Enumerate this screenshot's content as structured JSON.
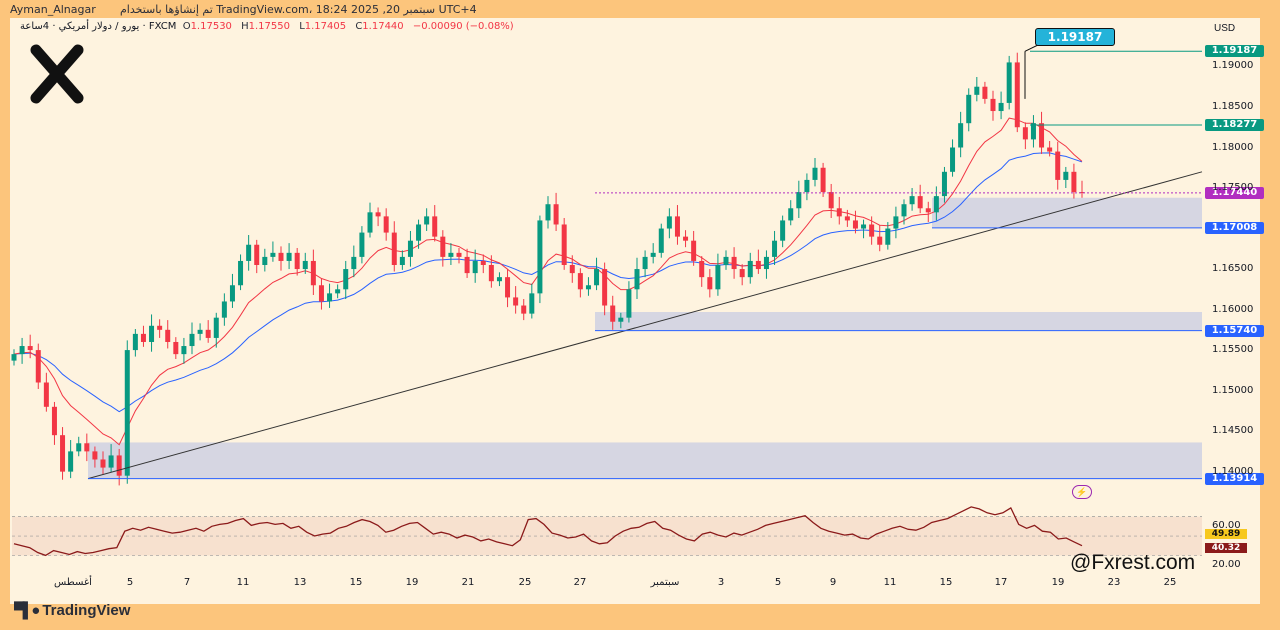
{
  "header": {
    "author": "Ayman_Alnagar",
    "published": "تم إنشاؤها باستخدام TradingView.com، 18:24 2025 ,20 سبتمبر UTC+4"
  },
  "legend": {
    "symbol": "يورو / دولار أمريكي · 4ساعة · FXCM",
    "open_label": "O",
    "open": "1.17530",
    "high_label": "H",
    "high": "1.17550",
    "low_label": "L",
    "low": "1.17405",
    "close_label": "C",
    "close": "1.17440",
    "change": "−0.00090 (−0.08%)"
  },
  "currency": "USD",
  "callout_price": "1.19187",
  "watermark": "@Fxrest.com",
  "brand": "TradingView",
  "chart_data": {
    "type": "candlestick",
    "symbol": "EURUSD",
    "timeframe": "4H",
    "ylim": [
      1.1365,
      1.1945
    ],
    "y_ticks": [
      "1.19000",
      "1.18500",
      "1.18000",
      "1.17500",
      "1.16500",
      "1.16000",
      "1.15500",
      "1.15000",
      "1.14500",
      "1.14000"
    ],
    "y_tick_values": [
      1.19,
      1.185,
      1.18,
      1.175,
      1.165,
      1.16,
      1.155,
      1.15,
      1.145,
      1.14
    ],
    "x_labels": [
      "أغسطس",
      "5",
      "7",
      "11",
      "13",
      "15",
      "19",
      "21",
      "25",
      "27",
      "سبتمبر",
      "3",
      "5",
      "9",
      "11",
      "15",
      "17",
      "19",
      "23",
      "25"
    ],
    "price_levels": [
      {
        "label": "1.19187",
        "value": 1.19187,
        "color": "#089981"
      },
      {
        "label": "1.18277",
        "value": 1.18277,
        "color": "#089981"
      },
      {
        "label": "1.17440",
        "value": 1.1744,
        "color": "#b12ec0"
      },
      {
        "label": "1.17008",
        "value": 1.17008,
        "color": "#2962ff"
      },
      {
        "label": "1.15740",
        "value": 1.1574,
        "color": "#2962ff"
      },
      {
        "label": "1.13914",
        "value": 1.13914,
        "color": "#2962ff"
      }
    ],
    "zones": [
      {
        "from": 1.17008,
        "to": 1.1738
      },
      {
        "from": 1.1574,
        "to": 1.1597
      },
      {
        "from": 1.13914,
        "to": 1.1436
      }
    ],
    "trendline": {
      "start": 1.13914,
      "end_at_chart_edge": 1.177
    },
    "price_path": [
      1.1545,
      1.1555,
      1.155,
      1.151,
      1.148,
      1.1445,
      1.14,
      1.1425,
      1.1435,
      1.1425,
      1.1415,
      1.1405,
      1.142,
      1.1395,
      1.155,
      1.157,
      1.156,
      1.158,
      1.1575,
      1.156,
      1.1545,
      1.1555,
      1.157,
      1.1575,
      1.1565,
      1.159,
      1.161,
      1.163,
      1.166,
      1.168,
      1.1655,
      1.1665,
      1.167,
      1.166,
      1.167,
      1.165,
      1.166,
      1.163,
      1.161,
      1.162,
      1.1625,
      1.165,
      1.1665,
      1.1695,
      1.172,
      1.1715,
      1.1695,
      1.1655,
      1.1665,
      1.1685,
      1.1705,
      1.1715,
      1.169,
      1.1665,
      1.167,
      1.1665,
      1.1645,
      1.166,
      1.1655,
      1.1635,
      1.164,
      1.1615,
      1.1605,
      1.1595,
      1.162,
      1.171,
      1.173,
      1.1705,
      1.1655,
      1.1645,
      1.1625,
      1.163,
      1.165,
      1.1605,
      1.1585,
      1.159,
      1.1625,
      1.165,
      1.1665,
      1.167,
      1.17,
      1.1715,
      1.169,
      1.1685,
      1.166,
      1.164,
      1.1625,
      1.1655,
      1.1665,
      1.165,
      1.164,
      1.166,
      1.165,
      1.1665,
      1.1685,
      1.171,
      1.1725,
      1.1745,
      1.176,
      1.1775,
      1.1745,
      1.1725,
      1.1715,
      1.171,
      1.17,
      1.1705,
      1.169,
      1.168,
      1.17,
      1.1715,
      1.173,
      1.174,
      1.1725,
      1.172,
      1.174,
      1.177,
      1.18,
      1.183,
      1.1865,
      1.1875,
      1.186,
      1.1845,
      1.1855,
      1.1905,
      1.1825,
      1.181,
      1.183,
      1.18,
      1.1795,
      1.176,
      1.177,
      1.1745,
      1.1744
    ],
    "ema_fast_color": "#f23645",
    "ema_slow_color": "#2962ff",
    "rsi": {
      "levels": [
        {
          "label": "60.00",
          "value": 60
        },
        {
          "label": "20.00",
          "value": 20
        }
      ],
      "current_labels": [
        {
          "label": "49.89",
          "value": 49.89,
          "color": "#f7c81e"
        },
        {
          "label": "40.32",
          "value": 40.32,
          "color": "#8b1a1a"
        }
      ],
      "ylim": [
        15,
        82
      ],
      "values": [
        42,
        40,
        38,
        33,
        30,
        35,
        33,
        31,
        34,
        32,
        33,
        35,
        37,
        38,
        55,
        58,
        56,
        59,
        57,
        55,
        53,
        54,
        56,
        58,
        55,
        60,
        62,
        63,
        66,
        68,
        61,
        63,
        64,
        62,
        63,
        58,
        60,
        54,
        50,
        52,
        53,
        58,
        60,
        64,
        67,
        65,
        61,
        54,
        56,
        60,
        63,
        64,
        58,
        52,
        54,
        52,
        48,
        51,
        49,
        45,
        47,
        44,
        42,
        40,
        46,
        67,
        68,
        62,
        53,
        51,
        48,
        49,
        52,
        45,
        42,
        43,
        50,
        55,
        58,
        59,
        63,
        65,
        58,
        56,
        51,
        47,
        45,
        52,
        54,
        51,
        49,
        53,
        51,
        54,
        57,
        61,
        63,
        65,
        67,
        69,
        71,
        64,
        58,
        55,
        53,
        51,
        52,
        48,
        47,
        52,
        55,
        58,
        60,
        57,
        56,
        59,
        64,
        66,
        68,
        72,
        76,
        80,
        78,
        74,
        72,
        74,
        79,
        62,
        58,
        61,
        55,
        54,
        47,
        48,
        44,
        40
      ]
    }
  }
}
